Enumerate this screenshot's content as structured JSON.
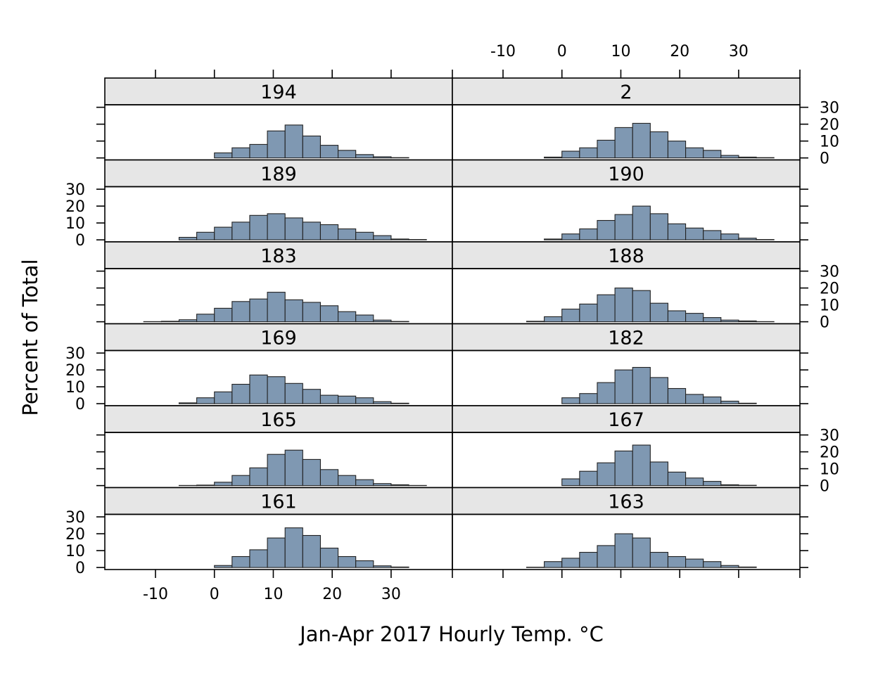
{
  "chart_data": {
    "type": "histogram-trellis",
    "xlabel": "Jan-Apr 2017 Hourly Temp. °C",
    "ylabel": "Percent of Total",
    "xlim": [
      -18.6,
      40.4
    ],
    "ylim": [
      -1.2,
      31.5
    ],
    "x_ticks": [
      -10,
      0,
      10,
      20,
      30
    ],
    "y_ticks": [
      0,
      10,
      20,
      30
    ],
    "bin_edges": [
      -15,
      -12,
      -9,
      -6,
      -3,
      0,
      3,
      6,
      9,
      12,
      15,
      18,
      21,
      24,
      27,
      30,
      33,
      36,
      38
    ],
    "layout": {
      "columns": 2,
      "rows": 6
    },
    "panels": [
      {
        "label": "194",
        "values": [
          0,
          0,
          0,
          0,
          0,
          3,
          6,
          8,
          16,
          19.5,
          13,
          7.5,
          4.5,
          2,
          0.7,
          0.2,
          0,
          0
        ]
      },
      {
        "label": "2",
        "values": [
          0,
          0,
          0,
          0,
          0.5,
          4,
          6,
          10.5,
          18,
          20.5,
          15.5,
          10,
          6,
          4.5,
          1.5,
          0.5,
          0.2,
          0
        ]
      },
      {
        "label": "189",
        "values": [
          0,
          0,
          0,
          1.5,
          4.5,
          7.5,
          10.5,
          14.5,
          15.5,
          13,
          10.5,
          9,
          6.5,
          4.5,
          2.5,
          0.5,
          0.2,
          0
        ]
      },
      {
        "label": "190",
        "values": [
          0,
          0,
          0,
          0,
          0.5,
          3.5,
          6.5,
          11.5,
          15,
          20,
          15.5,
          9.5,
          7,
          5.5,
          3.5,
          1,
          0.2,
          0
        ]
      },
      {
        "label": "183",
        "values": [
          0,
          0.1,
          0.3,
          1.2,
          4.5,
          8,
          12,
          13.5,
          17.5,
          13,
          11.5,
          9.5,
          6,
          4,
          1,
          0.2,
          0,
          0
        ]
      },
      {
        "label": "188",
        "values": [
          0,
          0,
          0,
          0.3,
          3,
          7.5,
          10.5,
          16,
          20,
          18.5,
          11,
          6.5,
          5,
          2.5,
          1,
          0.5,
          0.1,
          0
        ]
      },
      {
        "label": "169",
        "values": [
          0,
          0,
          0,
          0.5,
          3.5,
          7,
          11.5,
          17,
          16,
          12,
          8.5,
          5,
          4.5,
          3.5,
          1.2,
          0.3,
          0,
          0
        ]
      },
      {
        "label": "182",
        "values": [
          0,
          0,
          0,
          0,
          0,
          3.5,
          6,
          12.5,
          20,
          21.5,
          15.5,
          9,
          5.5,
          4,
          1.5,
          0.3,
          0,
          0
        ]
      },
      {
        "label": "165",
        "values": [
          0,
          0,
          0,
          0.1,
          0.3,
          2,
          6,
          10.5,
          18.5,
          21,
          15.5,
          9.5,
          6,
          3.5,
          1.2,
          0.5,
          0.1,
          0
        ]
      },
      {
        "label": "167",
        "values": [
          0,
          0,
          0,
          0,
          0,
          4,
          8.5,
          13.5,
          20.5,
          24,
          14,
          8,
          4.5,
          2.5,
          0.5,
          0.2,
          0,
          0
        ]
      },
      {
        "label": "161",
        "values": [
          0,
          0,
          0,
          0,
          0,
          1.2,
          6.5,
          10.5,
          17.5,
          23.5,
          19,
          11.5,
          6.5,
          4,
          1,
          0.3,
          0,
          0
        ]
      },
      {
        "label": "163",
        "values": [
          0,
          0,
          0,
          0.2,
          3.5,
          5.5,
          9,
          13,
          20,
          17.5,
          9,
          6.5,
          5,
          3.5,
          1.2,
          0.3,
          0,
          0
        ]
      }
    ]
  }
}
